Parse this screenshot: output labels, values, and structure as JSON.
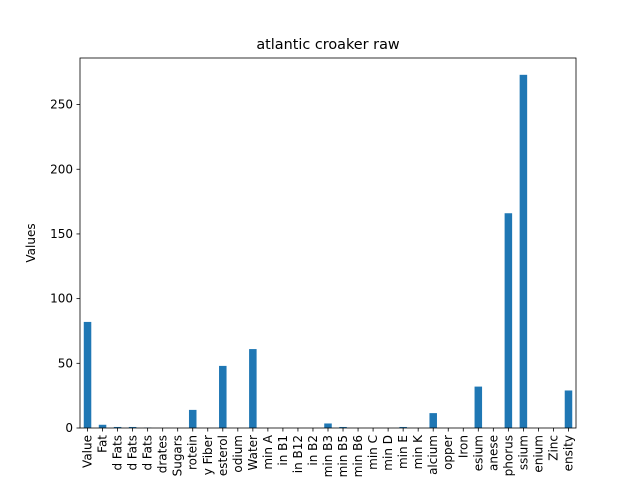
{
  "chart_data": {
    "type": "bar",
    "title": "atlantic croaker raw",
    "xlabel": "",
    "ylabel": "Values",
    "ylim": [
      0,
      286
    ],
    "yticks": [
      0,
      50,
      100,
      150,
      200,
      250
    ],
    "grid": false,
    "legend": "none",
    "color": "#1f77b4",
    "categories": [
      "Value",
      "Fat",
      "d Fats",
      "d Fats",
      "d Fats",
      "drates",
      "Sugars",
      "rotein",
      "y Fiber",
      "esterol",
      "odium",
      "Water",
      "min A",
      "in B1",
      "in B12",
      "in B2",
      "min B3",
      "min B5",
      "min B6",
      "min C",
      "min D",
      "min E",
      "min K",
      "alcium",
      "opper",
      "Iron",
      "esium",
      "anese",
      "phorus",
      "ssium",
      "enium",
      "Zinc",
      "ensity"
    ],
    "values": [
      82,
      2.5,
      0.8,
      0.8,
      0.3,
      0,
      0,
      14,
      0,
      48,
      0,
      61,
      0,
      0,
      0,
      0,
      3.5,
      0.8,
      0,
      0,
      0,
      0.8,
      0,
      11.5,
      0,
      0,
      32,
      0,
      166,
      273,
      0,
      0,
      29
    ]
  }
}
